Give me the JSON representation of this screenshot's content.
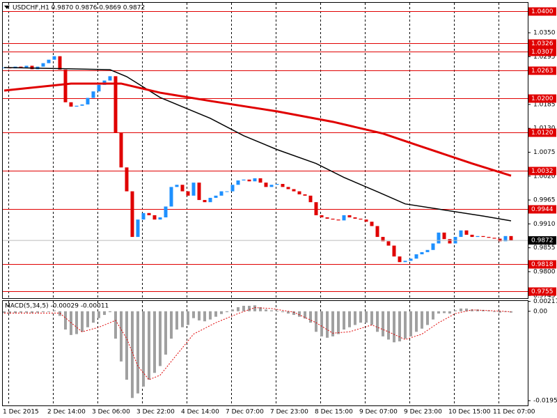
{
  "chart_data": {
    "type": "candlestick",
    "header": "USDCHF,H1 0.9870 0.9876 0.9869 0.9872",
    "up_color": "#1e90ff",
    "down_color": "#e00000",
    "values": [
      1.027,
      1.0268,
      1.0272,
      1.027,
      1.0274,
      1.0266,
      1.0272,
      1.028,
      1.0288,
      1.0296,
      1.0265,
      1.019,
      1.018,
      1.0182,
      1.0185,
      1.02,
      1.0215,
      1.023,
      1.024,
      1.025,
      1.012,
      1.004,
      0.9985,
      0.988,
      0.992,
      0.9935,
      0.993,
      0.992,
      0.9925,
      0.995,
      0.9995,
      1.0,
      0.9985,
      0.9975,
      1.0005,
      0.9965,
      0.996,
      0.997,
      0.9975,
      0.9985,
      0.9985,
      1.0,
      1.001,
      1.0012,
      1.0008,
      1.0015,
      1.0005,
      0.9995,
      1.0,
      1.0002,
      0.9995,
      0.999,
      0.9985,
      0.9978,
      0.9975,
      0.996,
      0.993,
      0.9925,
      0.9922,
      0.992,
      0.9918,
      0.993,
      0.9925,
      0.9922,
      0.992,
      0.9915,
      0.9905,
      0.988,
      0.987,
      0.986,
      0.9835,
      0.9822,
      0.9825,
      0.983,
      0.984,
      0.9845,
      0.985,
      0.9865,
      0.989,
      0.9875,
      0.9865,
      0.988,
      0.9895,
      0.9885,
      0.988,
      0.9882,
      0.988,
      0.9878,
      0.9876,
      0.987,
      0.9882,
      0.9872
    ],
    "lines": [
      {
        "color": "#000000",
        "x": [
          0,
          19,
          22,
          28,
          37,
          43,
          49,
          56,
          61,
          67,
          72,
          78,
          86,
          91
        ],
        "values": [
          1.027,
          1.0265,
          1.0249,
          1.0201,
          1.0153,
          1.0113,
          1.0081,
          1.0049,
          1.0017,
          0.9984,
          0.9956,
          0.9944,
          0.9928,
          0.9917
        ]
      },
      {
        "color": "#e00000",
        "x": [
          0,
          12,
          21,
          28,
          37,
          49,
          59,
          68,
          74,
          84,
          91
        ],
        "values": [
          1.0217,
          1.0233,
          1.0233,
          1.0212,
          1.0193,
          1.0169,
          1.0145,
          1.0118,
          1.0092,
          1.0049,
          1.0021
        ]
      }
    ],
    "ylim": [
      0.9739,
      1.0419
    ],
    "yticks": [
      {
        "value": 1.035,
        "label": "1.0350"
      },
      1.0295,
      1.0185,
      {
        "value": 1.013,
        "label": "1.0130"
      },
      1.0075,
      {
        "value": 1.002,
        "label": "1.0020"
      },
      0.9965,
      {
        "value": 0.991,
        "label": "0.9910"
      },
      0.9855,
      {
        "value": 0.98,
        "label": "0.9800"
      },
      0.9745
    ],
    "levels": [
      {
        "value": 1.04,
        "label": "1.0400"
      },
      {
        "value": 1.0326,
        "label": "1.0326"
      },
      {
        "value": 1.0307,
        "label": "1.0307"
      },
      {
        "value": 1.0263,
        "label": "1.0263"
      },
      {
        "value": 1.02,
        "label": "1.0200"
      },
      {
        "value": 1.012,
        "label": "1.0120"
      },
      {
        "value": 1.0032,
        "label": "1.0032"
      },
      {
        "value": 0.9944,
        "label": "0.9944"
      },
      {
        "value": 0.9818,
        "label": "0.9818"
      },
      {
        "value": 0.9755,
        "label": "0.9755"
      }
    ],
    "current": {
      "value": 0.9872,
      "label": "0.9872"
    },
    "x_labels": [
      "1 Dec 2015",
      "2 Dec 14:00",
      "3 Dec 06:00",
      "3 Dec 22:00",
      "4 Dec 14:00",
      "7 Dec 07:00",
      "7 Dec 23:00",
      "8 Dec 15:00",
      "9 Dec 07:00",
      "9 Dec 23:00",
      "10 Dec 15:00",
      "11 Dec 07:00"
    ],
    "macd": {
      "label": "MACD(5,34,5) -0.00029 -0.00011",
      "color": "#a0a0a0",
      "values": [
        -0.0004,
        -0.0005,
        -0.0004,
        -0.0003,
        -0.0003,
        -0.0004,
        -0.0003,
        -0.0002,
        0.0,
        0.0002,
        -0.001,
        -0.004,
        -0.0052,
        -0.005,
        -0.0045,
        -0.0035,
        -0.0025,
        -0.0015,
        -0.0008,
        -0.0002,
        -0.006,
        -0.011,
        -0.015,
        -0.019,
        -0.018,
        -0.0165,
        -0.015,
        -0.0135,
        -0.012,
        -0.0095,
        -0.006,
        -0.004,
        -0.0035,
        -0.003,
        -0.0015,
        -0.002,
        -0.0022,
        -0.0018,
        -0.0012,
        -0.0006,
        -0.0002,
        0.0004,
        0.0009,
        0.0012,
        0.0012,
        0.0013,
        0.0009,
        0.0004,
        0.0002,
        0.0001,
        -0.0002,
        -0.0005,
        -0.0008,
        -0.0012,
        -0.0016,
        -0.0025,
        -0.0045,
        -0.0055,
        -0.0058,
        -0.0055,
        -0.005,
        -0.004,
        -0.0035,
        -0.003,
        -0.0025,
        -0.0025,
        -0.003,
        -0.0045,
        -0.0055,
        -0.0062,
        -0.0068,
        -0.0066,
        -0.006,
        -0.0055,
        -0.0045,
        -0.0038,
        -0.003,
        -0.0018,
        -0.0005,
        -0.0004,
        -0.0005,
        0.0002,
        0.0006,
        0.0006,
        0.0004,
        0.0004,
        0.0003,
        0.0002,
        0.0,
        -0.0003,
        -0.0001,
        -0.00029
      ],
      "signal": {
        "color": "#e00000",
        "x": [
          0,
          10,
          12,
          14,
          17,
          20,
          22,
          24,
          26,
          28,
          31,
          34,
          38,
          42,
          45,
          48,
          52,
          56,
          59,
          62,
          66,
          69,
          72,
          75,
          78,
          81,
          84,
          88,
          91
        ],
        "values": [
          -0.0004,
          -0.0004,
          -0.0025,
          -0.0045,
          -0.0035,
          -0.002,
          -0.006,
          -0.012,
          -0.015,
          -0.014,
          -0.0095,
          -0.005,
          -0.0025,
          -0.0005,
          0.0008,
          0.0006,
          -0.0002,
          -0.0025,
          -0.0048,
          -0.0045,
          -0.003,
          -0.0045,
          -0.0062,
          -0.005,
          -0.0025,
          -0.0005,
          0.0003,
          0.0001,
          -0.00011
        ]
      },
      "ylim": [
        -0.02064,
        0.00226
      ],
      "yticks": [
        0.00217,
        {
          "value": 0,
          "label": "0.00"
        },
        -0.01959
      ]
    }
  }
}
